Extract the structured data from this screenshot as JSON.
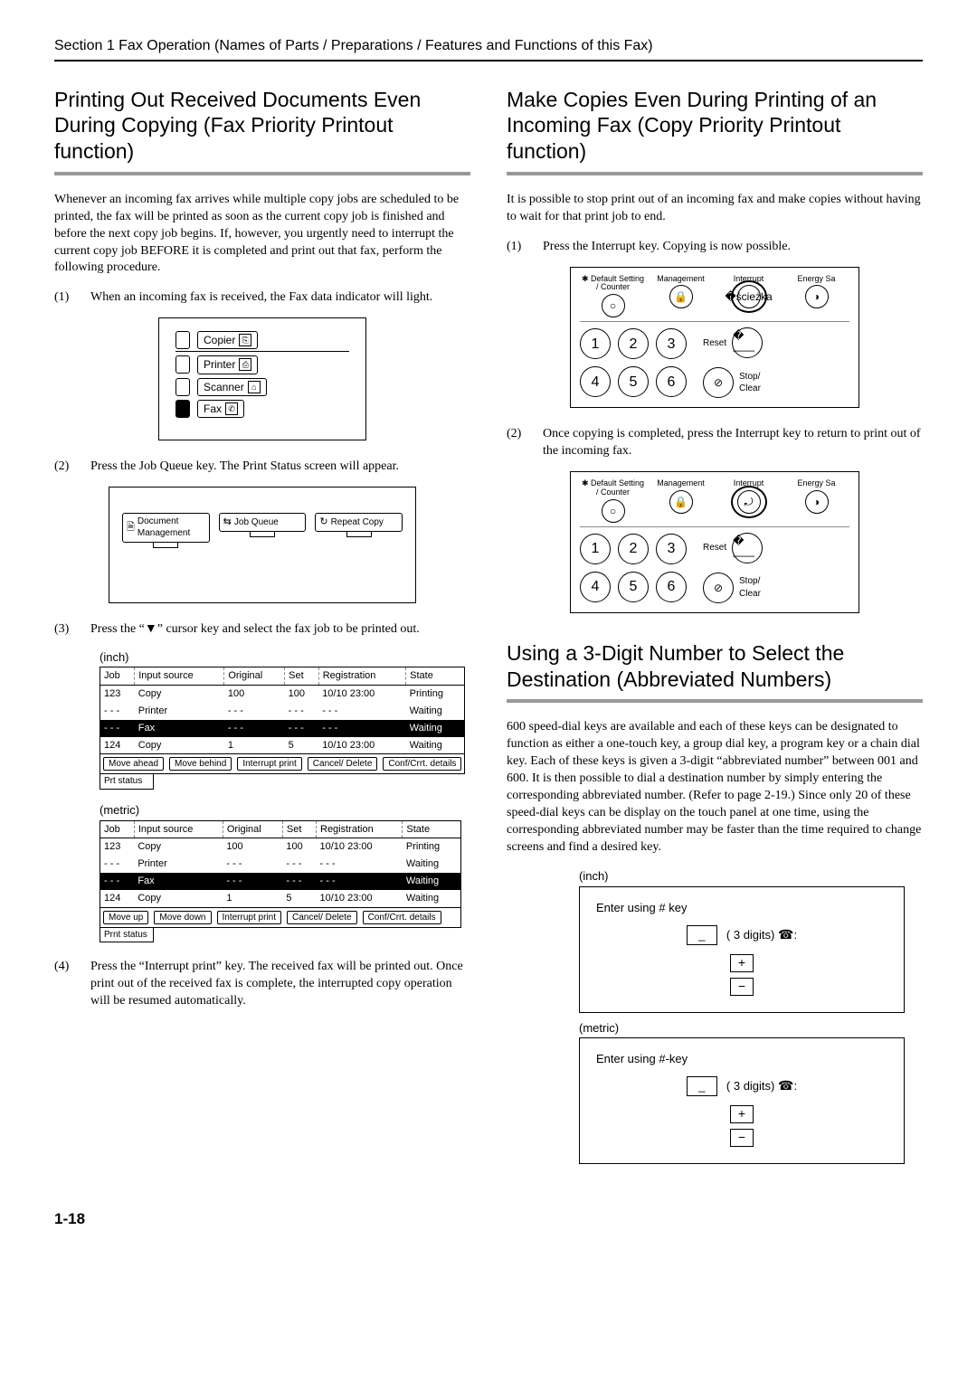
{
  "header": "Section 1  Fax Operation (Names of Parts / Preparations / Features and Functions of this Fax)",
  "page_number": "1-18",
  "left": {
    "title": "Printing Out Received Documents Even During Copying  (Fax Priority Printout function)",
    "intro": "Whenever an incoming fax arrives while multiple copy jobs are scheduled to be printed, the fax will be printed as soon as the current copy job is finished and before the next copy job begins. If, however, you urgently need to interrupt the current copy job BEFORE it is completed and print out that fax, perform the following procedure.",
    "steps": {
      "s1": {
        "n": "(1)",
        "t": "When an incoming fax is received, the Fax data indicator will light."
      },
      "s2": {
        "n": "(2)",
        "t": "Press the Job Queue key. The Print Status screen will appear."
      },
      "s3": {
        "n": "(3)",
        "t": "Press the “▼” cursor key and select the fax job to be printed out."
      },
      "s4": {
        "n": "(4)",
        "t": "Press the “Interrupt print” key. The received fax will be printed out. Once print out of the received fax is complete, the interrupted copy operation will be resumed automatically."
      }
    },
    "mode_buttons": [
      "Copier",
      "Printer",
      "Scanner",
      "Fax"
    ],
    "jq_buttons": [
      "Document Management",
      "Job Queue",
      "Repeat Copy"
    ],
    "ps": {
      "labels": {
        "inch": "(inch)",
        "metric": "(metric)"
      },
      "headers": [
        "Job",
        "Input source",
        "Original",
        "Set",
        "Registration",
        "State"
      ],
      "rows": [
        {
          "job": "123",
          "src": "Copy",
          "orig": "100",
          "set": "100",
          "reg": "10/10  23:00",
          "state": "Printing"
        },
        {
          "job": "- - -",
          "src": "Printer",
          "orig": "- - -",
          "set": "- - -",
          "reg": "- - -",
          "state": "Waiting"
        },
        {
          "job": "- - -",
          "src": "Fax",
          "orig": "- - -",
          "set": "- - -",
          "reg": "- - -",
          "state": "Waiting",
          "hl": true
        },
        {
          "job": "124",
          "src": "Copy",
          "orig": "1",
          "set": "5",
          "reg": "10/10  23:00",
          "state": "Waiting"
        }
      ],
      "btns_inch": [
        "Move ahead",
        "Move behind",
        "Interrupt print",
        "Cancel/ Delete",
        "Conf/Crrt. details"
      ],
      "btns_metric": [
        "Move up",
        "Move down",
        "Interrupt print",
        "Cancel/ Delete",
        "Conf/Crrt. details"
      ],
      "tab_inch": "Prt status",
      "tab_metric": "Prnt status"
    }
  },
  "right": {
    "title1": "Make Copies Even During Printing of an Incoming Fax  (Copy Priority Printout function)",
    "intro1": "It is possible to stop print out of an incoming fax and make copies without having to wait for that print job to end.",
    "steps1": {
      "s1": {
        "n": "(1)",
        "t": "Press the Interrupt key. Copying is now possible."
      },
      "s2": {
        "n": "(2)",
        "t": "Once copying is completed, press the Interrupt key to return to print out of the incoming fax."
      }
    },
    "kp": {
      "top": [
        "Default Setting / Counter",
        "Management",
        "Interrupt",
        "Energy Sa"
      ],
      "reset": "Reset",
      "stop": "Stop/\nClear"
    },
    "title2": "Using a 3-Digit Number to Select the Destination  (Abbreviated Numbers)",
    "intro2": "600 speed-dial keys are available and each of these keys can be designated to function as either a one-touch key, a group dial key, a program key or a chain dial key. Each of these keys is given a 3-digit “abbreviated number” between 001 and 600. It is then possible to dial a destination number by simply entering the corresponding abbreviated number. (Refer to page 2-19.) Since only 20 of these speed-dial keys can be display on the touch panel at one time, using the corresponding abbreviated number may be faster than the time required to change screens and find a desired key.",
    "ab": {
      "inch_label": "(inch)",
      "metric_label": "(metric)",
      "inch_text": "Enter using # key",
      "metric_text": "Enter using #-key",
      "digits_text": "( 3 digits)"
    }
  }
}
